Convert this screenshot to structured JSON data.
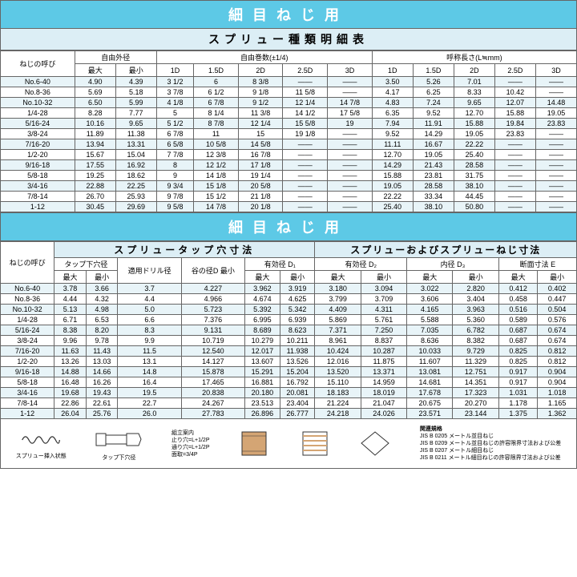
{
  "title1": "細目ねじ用",
  "subtitle1": "スプリュー種類明細表",
  "title2": "細目ねじ用",
  "subtitle2a": "スプリュータップ穴寸法",
  "subtitle2b": "スプリューおよびスプリューねじ寸法",
  "t1_headers": {
    "thread": "ねじの呼び",
    "free_od": "自由外径",
    "free_turns": "自由巻数(±1/4)",
    "nominal_len": "呼称長さ(L≒mm)",
    "max": "最大",
    "min": "最小",
    "d1": "1D",
    "d15": "1.5D",
    "d2": "2D",
    "d25": "2.5D",
    "d3": "3D"
  },
  "t1_rows": [
    {
      "thread": "No.6-40",
      "od_max": "4.90",
      "od_min": "4.39",
      "t1": "3 1/2",
      "t2": "6",
      "t3": "8 3/8",
      "t4": "——",
      "t5": "——",
      "l1": "3.50",
      "l2": "5.26",
      "l3": "7.01",
      "l4": "——",
      "l5": "——"
    },
    {
      "thread": "No.8-36",
      "od_max": "5.69",
      "od_min": "5.18",
      "t1": "3 7/8",
      "t2": "6 1/2",
      "t3": "9 1/8",
      "t4": "11 5/8",
      "t5": "——",
      "l1": "4.17",
      "l2": "6.25",
      "l3": "8.33",
      "l4": "10.42",
      "l5": "——"
    },
    {
      "thread": "No.10-32",
      "od_max": "6.50",
      "od_min": "5.99",
      "t1": "4 1/8",
      "t2": "6 7/8",
      "t3": "9 1/2",
      "t4": "12 1/4",
      "t5": "14 7/8",
      "l1": "4.83",
      "l2": "7.24",
      "l3": "9.65",
      "l4": "12.07",
      "l5": "14.48"
    },
    {
      "thread": "1/4-28",
      "od_max": "8.28",
      "od_min": "7.77",
      "t1": "5",
      "t2": "8 1/4",
      "t3": "11 3/8",
      "t4": "14 1/2",
      "t5": "17 5/8",
      "l1": "6.35",
      "l2": "9.52",
      "l3": "12.70",
      "l4": "15.88",
      "l5": "19.05"
    },
    {
      "thread": "5/16-24",
      "od_max": "10.16",
      "od_min": "9.65",
      "t1": "5 1/2",
      "t2": "8 7/8",
      "t3": "12 1/4",
      "t4": "15 5/8",
      "t5": "19",
      "l1": "7.94",
      "l2": "11.91",
      "l3": "15.88",
      "l4": "19.84",
      "l5": "23.83"
    },
    {
      "thread": "3/8-24",
      "od_max": "11.89",
      "od_min": "11.38",
      "t1": "6 7/8",
      "t2": "11",
      "t3": "15",
      "t4": "19 1/8",
      "t5": "——",
      "l1": "9.52",
      "l2": "14.29",
      "l3": "19.05",
      "l4": "23.83",
      "l5": "——"
    },
    {
      "thread": "7/16-20",
      "od_max": "13.94",
      "od_min": "13.31",
      "t1": "6 5/8",
      "t2": "10 5/8",
      "t3": "14 5/8",
      "t4": "——",
      "t5": "——",
      "l1": "11.11",
      "l2": "16.67",
      "l3": "22.22",
      "l4": "——",
      "l5": "——"
    },
    {
      "thread": "1/2-20",
      "od_max": "15.67",
      "od_min": "15.04",
      "t1": "7 7/8",
      "t2": "12 3/8",
      "t3": "16 7/8",
      "t4": "——",
      "t5": "——",
      "l1": "12.70",
      "l2": "19.05",
      "l3": "25.40",
      "l4": "——",
      "l5": "——"
    },
    {
      "thread": "9/16-18",
      "od_max": "17.55",
      "od_min": "16.92",
      "t1": "8",
      "t2": "12 1/2",
      "t3": "17 1/8",
      "t4": "——",
      "t5": "——",
      "l1": "14.29",
      "l2": "21.43",
      "l3": "28.58",
      "l4": "——",
      "l5": "——"
    },
    {
      "thread": "5/8-18",
      "od_max": "19.25",
      "od_min": "18.62",
      "t1": "9",
      "t2": "14 1/8",
      "t3": "19 1/4",
      "t4": "——",
      "t5": "——",
      "l1": "15.88",
      "l2": "23.81",
      "l3": "31.75",
      "l4": "——",
      "l5": "——"
    },
    {
      "thread": "3/4-16",
      "od_max": "22.88",
      "od_min": "22.25",
      "t1": "9 3/4",
      "t2": "15 1/8",
      "t3": "20 5/8",
      "t4": "——",
      "t5": "——",
      "l1": "19.05",
      "l2": "28.58",
      "l3": "38.10",
      "l4": "——",
      "l5": "——"
    },
    {
      "thread": "7/8-14",
      "od_max": "26.70",
      "od_min": "25.93",
      "t1": "9 7/8",
      "t2": "15 1/2",
      "t3": "21 1/8",
      "t4": "——",
      "t5": "——",
      "l1": "22.22",
      "l2": "33.34",
      "l3": "44.45",
      "l4": "——",
      "l5": "——"
    },
    {
      "thread": "1-12",
      "od_max": "30.45",
      "od_min": "29.69",
      "t1": "9 5/8",
      "t2": "14 7/8",
      "t3": "20 1/8",
      "t4": "——",
      "t5": "——",
      "l1": "25.40",
      "l2": "38.10",
      "l3": "50.80",
      "l4": "——",
      "l5": "——"
    }
  ],
  "t2_headers": {
    "thread": "ねじの呼び",
    "tap_hole": "タップ下穴径",
    "drill": "適用ドリル径",
    "root_d": "谷の径D 最小",
    "eff_d1": "有効径 D₁",
    "eff_d2": "有効径 D₂",
    "inner_d3": "内径 D₃",
    "sect_e": "断面寸法 E",
    "max": "最大",
    "min": "最小"
  },
  "t2_rows": [
    {
      "thread": "No.6-40",
      "a": "3.78",
      "b": "3.66",
      "c": "3.7",
      "d": "4.227",
      "e": "3.962",
      "f": "3.919",
      "g": "3.180",
      "h": "3.094",
      "i": "3.022",
      "j": "2.820",
      "k": "0.412",
      "l": "0.402"
    },
    {
      "thread": "No.8-36",
      "a": "4.44",
      "b": "4.32",
      "c": "4.4",
      "d": "4.966",
      "e": "4.674",
      "f": "4.625",
      "g": "3.799",
      "h": "3.709",
      "i": "3.606",
      "j": "3.404",
      "k": "0.458",
      "l": "0.447"
    },
    {
      "thread": "No.10-32",
      "a": "5.13",
      "b": "4.98",
      "c": "5.0",
      "d": "5.723",
      "e": "5.392",
      "f": "5.342",
      "g": "4.409",
      "h": "4.311",
      "i": "4.165",
      "j": "3.963",
      "k": "0.516",
      "l": "0.504"
    },
    {
      "thread": "1/4-28",
      "a": "6.71",
      "b": "6.53",
      "c": "6.6",
      "d": "7.376",
      "e": "6.995",
      "f": "6.939",
      "g": "5.869",
      "h": "5.761",
      "i": "5.588",
      "j": "5.360",
      "k": "0.589",
      "l": "0.576"
    },
    {
      "thread": "5/16-24",
      "a": "8.38",
      "b": "8.20",
      "c": "8.3",
      "d": "9.131",
      "e": "8.689",
      "f": "8.623",
      "g": "7.371",
      "h": "7.250",
      "i": "7.035",
      "j": "6.782",
      "k": "0.687",
      "l": "0.674"
    },
    {
      "thread": "3/8-24",
      "a": "9.96",
      "b": "9.78",
      "c": "9.9",
      "d": "10.719",
      "e": "10.279",
      "f": "10.211",
      "g": "8.961",
      "h": "8.837",
      "i": "8.636",
      "j": "8.382",
      "k": "0.687",
      "l": "0.674"
    },
    {
      "thread": "7/16-20",
      "a": "11.63",
      "b": "11.43",
      "c": "11.5",
      "d": "12.540",
      "e": "12.017",
      "f": "11.938",
      "g": "10.424",
      "h": "10.287",
      "i": "10.033",
      "j": "9.729",
      "k": "0.825",
      "l": "0.812"
    },
    {
      "thread": "1/2-20",
      "a": "13.26",
      "b": "13.03",
      "c": "13.1",
      "d": "14.127",
      "e": "13.607",
      "f": "13.526",
      "g": "12.016",
      "h": "11.875",
      "i": "11.607",
      "j": "11.329",
      "k": "0.825",
      "l": "0.812"
    },
    {
      "thread": "9/16-18",
      "a": "14.88",
      "b": "14.66",
      "c": "14.8",
      "d": "15.878",
      "e": "15.291",
      "f": "15.204",
      "g": "13.520",
      "h": "13.371",
      "i": "13.081",
      "j": "12.751",
      "k": "0.917",
      "l": "0.904"
    },
    {
      "thread": "5/8-18",
      "a": "16.48",
      "b": "16.26",
      "c": "16.4",
      "d": "17.465",
      "e": "16.881",
      "f": "16.792",
      "g": "15.110",
      "h": "14.959",
      "i": "14.681",
      "j": "14.351",
      "k": "0.917",
      "l": "0.904"
    },
    {
      "thread": "3/4-16",
      "a": "19.68",
      "b": "19.43",
      "c": "19.5",
      "d": "20.838",
      "e": "20.180",
      "f": "20.081",
      "g": "18.183",
      "h": "18.019",
      "i": "17.678",
      "j": "17.323",
      "k": "1.031",
      "l": "1.018"
    },
    {
      "thread": "7/8-14",
      "a": "22.86",
      "b": "22.61",
      "c": "22.7",
      "d": "24.267",
      "e": "23.513",
      "f": "23.404",
      "g": "21.224",
      "h": "21.047",
      "i": "20.675",
      "j": "20.270",
      "k": "1.178",
      "l": "1.165"
    },
    {
      "thread": "1-12",
      "a": "26.04",
      "b": "25.76",
      "c": "26.0",
      "d": "27.783",
      "e": "26.896",
      "f": "26.777",
      "g": "24.218",
      "h": "24.026",
      "i": "23.571",
      "j": "23.144",
      "k": "1.375",
      "l": "1.362"
    }
  ],
  "diagram_labels": {
    "spring_free": "スプリュー挿入状態",
    "tap_hole": "タップ下穴径",
    "assembly_notes": "組立案内\n止り穴=L+1/2P\n通り穴=L+1/2P\n面取=3/4P",
    "related": "関連規格",
    "jis1": "JIS B 0205 メートル並目ねじ",
    "jis2": "JIS B 0209 メートル並目ねじの許容限界寸法および公差",
    "jis3": "JIS B 0207 メートル細目ねじ",
    "jis4": "JIS B 0211 メートル細目ねじの許容限界寸法および公差"
  },
  "colors": {
    "title_bg": "#5dc9e6",
    "title_fg": "#ffffff",
    "subtitle_bg": "#dceef5",
    "alt_row_bg": "#e8f4f8",
    "border": "#666666"
  }
}
